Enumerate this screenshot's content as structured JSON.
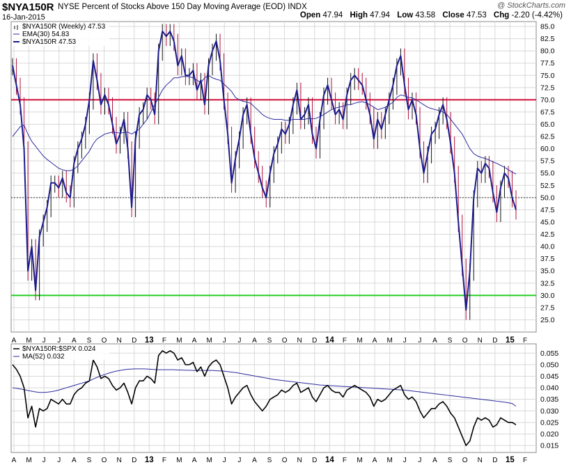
{
  "header": {
    "symbol": "$NYA150R",
    "description": "NYSE Percent of Stocks Above 150 Day Moving Average (EOD)",
    "exchange": "INDX",
    "date": "16-Jan-2015",
    "copyright": "@ StockCharts.com",
    "ohlc": {
      "open_label": "Open",
      "open": "47.94",
      "high_label": "High",
      "high": "47.94",
      "low_label": "Low",
      "low": "43.58",
      "close_label": "Close",
      "close": "47.53",
      "chg_label": "Chg",
      "chg": "-2.20 (-4.42%)"
    }
  },
  "colors": {
    "price": "#1a1a8c",
    "down_wick": "#b0103a",
    "ema": "#2a2a9c",
    "red_line": "#d0103a",
    "green_line": "#22cc22",
    "grid": "#d8d8d8",
    "ratio": "#000000",
    "ma": "#2a2a9c"
  },
  "chart_data": [
    {
      "type": "line",
      "panel": "main",
      "legend": [
        "$NYA150R (Weekly) 47.53",
        "EMA(30) 54.83",
        "$NYA150R 47.53"
      ],
      "ylim": [
        22.5,
        86
      ],
      "yticks": [
        25.0,
        27.5,
        30.0,
        32.5,
        35.0,
        37.5,
        40.0,
        42.5,
        45.0,
        47.5,
        50.0,
        52.5,
        55.0,
        57.5,
        60.0,
        62.5,
        65.0,
        67.5,
        70.0,
        72.5,
        75.0,
        77.5,
        80.0,
        82.5,
        85.0
      ],
      "xticks": [
        "A",
        "M",
        "J",
        "J",
        "A",
        "S",
        "O",
        "N",
        "D",
        "13",
        "F",
        "M",
        "A",
        "M",
        "J",
        "J",
        "A",
        "S",
        "O",
        "N",
        "D",
        "14",
        "F",
        "M",
        "A",
        "M",
        "J",
        "J",
        "A",
        "S",
        "O",
        "N",
        "D",
        "15",
        "F"
      ],
      "bold_xticks": [
        "13",
        "14",
        "15"
      ],
      "horizontal_lines": [
        {
          "value": 70.0,
          "color": "red"
        },
        {
          "value": 30.0,
          "color": "green"
        },
        {
          "value": 50.0,
          "style": "dotted"
        }
      ],
      "series": [
        {
          "name": "$NYA150R",
          "values": [
            77,
            73,
            69,
            60,
            35,
            40,
            31,
            42,
            45,
            48,
            53,
            53,
            52,
            54,
            51,
            50,
            57,
            60,
            62,
            65,
            70,
            78,
            74,
            69,
            71,
            69,
            65,
            61,
            63,
            66,
            60,
            48,
            62,
            67,
            68,
            71,
            70,
            67,
            80,
            84,
            83,
            84,
            82,
            77,
            79,
            75,
            75,
            76,
            72,
            74,
            69,
            77,
            80,
            82,
            78,
            70,
            63,
            53,
            58,
            62,
            67,
            69,
            63,
            58,
            55,
            52,
            50,
            55,
            59,
            61,
            64,
            63,
            65,
            69,
            72,
            66,
            67,
            69,
            63,
            60,
            66,
            71,
            73,
            70,
            67,
            68,
            66,
            71,
            74,
            75,
            74,
            73,
            70,
            67,
            62,
            66,
            64,
            67,
            70,
            73,
            77,
            79,
            73,
            68,
            70,
            67,
            60,
            55,
            59,
            63,
            64,
            67,
            69,
            66,
            61,
            55,
            45,
            36,
            27,
            35,
            50,
            56,
            55,
            57,
            56,
            51,
            47,
            52,
            55,
            54,
            50,
            47.5
          ]
        },
        {
          "name": "EMA(30)",
          "values": [
            62.5,
            63.5,
            64.5,
            64.8,
            63,
            61.5,
            60.5,
            59.5,
            58.5,
            57.8,
            57.2,
            56.6,
            56,
            55.7,
            55.5,
            55.5,
            55.8,
            56.5,
            57.5,
            58.5,
            59.5,
            61,
            62,
            62.5,
            63,
            63.2,
            63.4,
            63.3,
            63.2,
            63.3,
            63.4,
            63,
            63.5,
            64,
            65,
            66,
            67.5,
            69,
            70.5,
            72,
            73,
            73.7,
            74.5,
            74.5,
            74.7,
            74.8,
            74.7,
            74.5,
            74,
            73.5,
            74.5,
            75,
            74.5,
            74.2,
            74,
            73.2,
            72.5,
            71.7,
            70.5,
            70,
            69.7,
            69.5,
            69.3,
            68.5,
            67.8,
            67,
            66.5,
            66.2,
            66,
            66,
            66,
            65.8,
            65.8,
            66,
            66,
            66,
            66,
            66.2,
            66.1,
            66.2,
            66.6,
            67,
            67.5,
            68,
            68.3,
            68.5,
            68.7,
            69,
            69,
            69.3,
            69.5,
            69.6,
            69.4,
            69,
            68.5,
            68,
            68.2,
            68.5,
            69,
            69.5,
            70.5,
            71,
            70.8,
            70.5,
            70.4,
            70,
            69.5,
            69,
            68.5,
            68.2,
            68,
            67.8,
            67.5,
            67,
            66,
            65,
            64,
            63,
            61.5,
            60,
            59,
            58.5,
            58.2,
            58,
            57.7,
            57.3,
            57,
            56.6,
            56.2,
            55.7,
            55.2,
            54.83
          ]
        }
      ]
    },
    {
      "type": "line",
      "panel": "ratio",
      "legend": [
        "$NYA150R:$SPX 0.024",
        "MA(52) 0.032"
      ],
      "ylim": [
        0.012,
        0.059
      ],
      "yticks": [
        0.015,
        0.02,
        0.025,
        0.03,
        0.035,
        0.04,
        0.045,
        0.05,
        0.055
      ],
      "series": [
        {
          "name": "$NYA150R:$SPX",
          "values": [
            0.05,
            0.048,
            0.045,
            0.04,
            0.027,
            0.032,
            0.023,
            0.031,
            0.03,
            0.031,
            0.035,
            0.034,
            0.033,
            0.035,
            0.033,
            0.033,
            0.037,
            0.039,
            0.04,
            0.042,
            0.043,
            0.052,
            0.049,
            0.044,
            0.045,
            0.044,
            0.041,
            0.039,
            0.04,
            0.042,
            0.038,
            0.033,
            0.04,
            0.043,
            0.043,
            0.045,
            0.044,
            0.042,
            0.054,
            0.056,
            0.055,
            0.056,
            0.055,
            0.052,
            0.053,
            0.05,
            0.05,
            0.051,
            0.047,
            0.049,
            0.045,
            0.049,
            0.051,
            0.052,
            0.05,
            0.045,
            0.04,
            0.033,
            0.036,
            0.038,
            0.04,
            0.041,
            0.037,
            0.034,
            0.032,
            0.03,
            0.032,
            0.035,
            0.036,
            0.037,
            0.039,
            0.038,
            0.039,
            0.041,
            0.042,
            0.038,
            0.039,
            0.04,
            0.036,
            0.034,
            0.037,
            0.04,
            0.041,
            0.039,
            0.038,
            0.038,
            0.036,
            0.039,
            0.04,
            0.041,
            0.04,
            0.039,
            0.038,
            0.036,
            0.032,
            0.035,
            0.034,
            0.035,
            0.037,
            0.039,
            0.04,
            0.041,
            0.037,
            0.035,
            0.036,
            0.034,
            0.03,
            0.027,
            0.029,
            0.031,
            0.031,
            0.033,
            0.034,
            0.032,
            0.029,
            0.027,
            0.023,
            0.019,
            0.015,
            0.017,
            0.023,
            0.027,
            0.026,
            0.027,
            0.026,
            0.023,
            0.024,
            0.027,
            0.026,
            0.025,
            0.025,
            0.024
          ]
        },
        {
          "name": "MA(52)",
          "values": [
            0.04,
            0.0398,
            0.0395,
            0.0392,
            0.0388,
            0.0385,
            0.0382,
            0.038,
            0.038,
            0.0381,
            0.0383,
            0.0386,
            0.039,
            0.0395,
            0.04,
            0.0405,
            0.041,
            0.0415,
            0.042,
            0.0425,
            0.043,
            0.0438,
            0.0445,
            0.0452,
            0.0458,
            0.0463,
            0.0468,
            0.0472,
            0.0475,
            0.0478,
            0.048,
            0.0481,
            0.0482,
            0.0482,
            0.0482,
            0.0481,
            0.048,
            0.0479,
            0.0478,
            0.0478,
            0.0478,
            0.0478,
            0.0478,
            0.0477,
            0.0477,
            0.0476,
            0.0476,
            0.0475,
            0.0475,
            0.0475,
            0.0475,
            0.0475,
            0.0475,
            0.0474,
            0.0473,
            0.0472,
            0.047,
            0.0468,
            0.0466,
            0.0463,
            0.046,
            0.0457,
            0.0454,
            0.0451,
            0.0448,
            0.0445,
            0.0442,
            0.0439,
            0.0436,
            0.0434,
            0.0432,
            0.043,
            0.0428,
            0.0426,
            0.0424,
            0.0422,
            0.042,
            0.0418,
            0.0416,
            0.0414,
            0.0412,
            0.0411,
            0.041,
            0.0409,
            0.0408,
            0.0407,
            0.0406,
            0.0405,
            0.0404,
            0.0403,
            0.0402,
            0.0401,
            0.04,
            0.0399,
            0.0398,
            0.0397,
            0.0396,
            0.0395,
            0.0394,
            0.0393,
            0.0392,
            0.0391,
            0.039,
            0.0388,
            0.0386,
            0.0384,
            0.0382,
            0.038,
            0.0378,
            0.0376,
            0.0374,
            0.0372,
            0.037,
            0.0368,
            0.0366,
            0.0364,
            0.0362,
            0.036,
            0.0358,
            0.0356,
            0.0354,
            0.0352,
            0.035,
            0.0348,
            0.0346,
            0.0344,
            0.0342,
            0.034,
            0.0338,
            0.0335,
            0.0332,
            0.032
          ]
        }
      ]
    }
  ]
}
